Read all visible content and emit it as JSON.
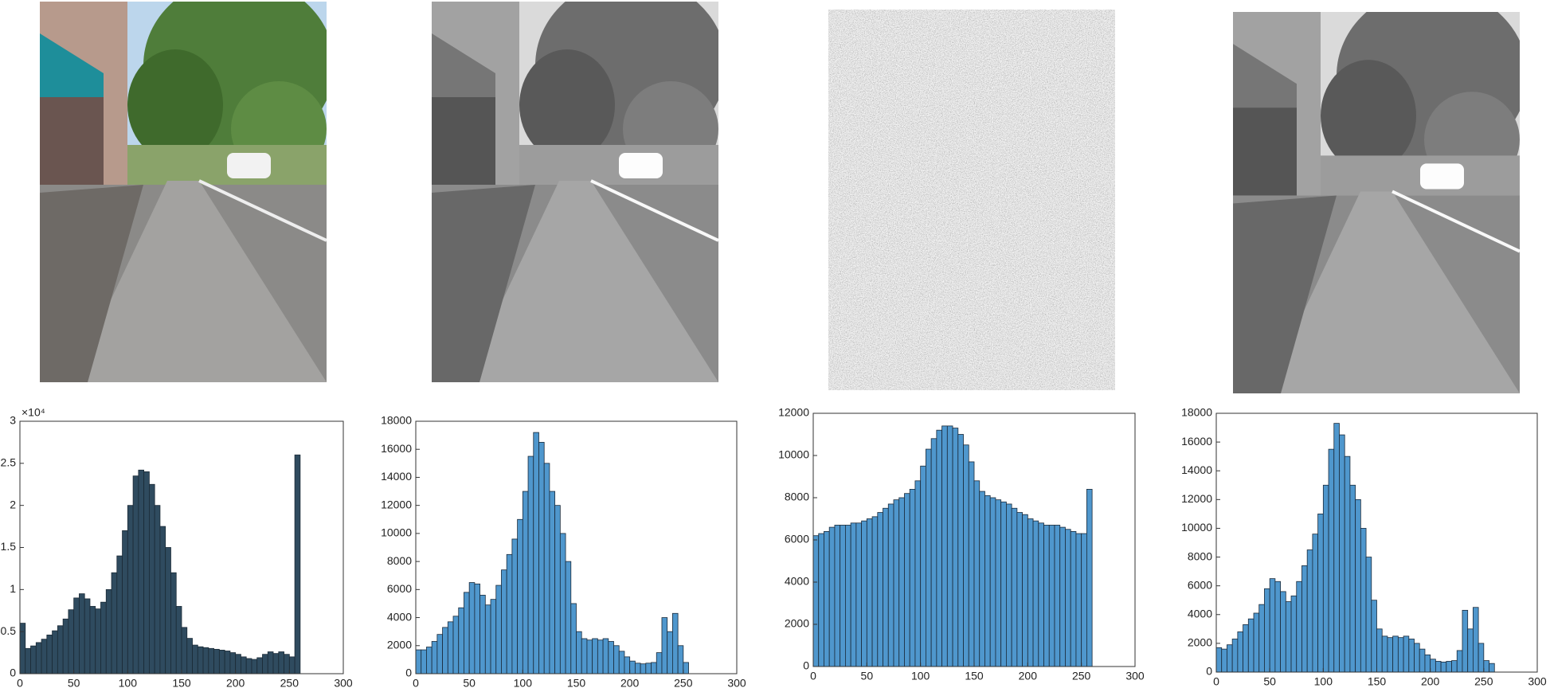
{
  "chart_data": [
    {
      "type": "histogram",
      "color": "#2f4b5f",
      "edge_color": "#1b2a36",
      "bins": [
        0,
        5,
        10,
        15,
        20,
        25,
        30,
        35,
        40,
        45,
        50,
        55,
        60,
        65,
        70,
        75,
        80,
        85,
        90,
        95,
        100,
        105,
        110,
        115,
        120,
        125,
        130,
        135,
        140,
        145,
        150,
        155,
        160,
        165,
        170,
        175,
        180,
        185,
        190,
        195,
        200,
        205,
        210,
        215,
        220,
        225,
        230,
        235,
        240,
        245,
        250,
        255,
        260
      ],
      "counts": [
        6000,
        3000,
        3300,
        3700,
        4100,
        4600,
        5100,
        5700,
        6500,
        7600,
        9000,
        9500,
        8900,
        8000,
        7700,
        8500,
        10000,
        12000,
        14000,
        17000,
        20000,
        23500,
        24200,
        24000,
        22500,
        20000,
        17500,
        15000,
        12000,
        8000,
        5500,
        4200,
        3400,
        3200,
        3100,
        3000,
        2900,
        2800,
        2700,
        2500,
        2300,
        2000,
        1800,
        1700,
        1900,
        2300,
        2600,
        2400,
        2600,
        2300,
        2000,
        26000
      ],
      "xlim": [
        0,
        300
      ],
      "xticks": [
        0,
        50,
        100,
        150,
        200,
        250,
        300
      ],
      "ylim": [
        0,
        30000
      ],
      "exponent_label": "×10⁴",
      "yticks": [
        0,
        {
          "value": 5000,
          "label": "0.5"
        },
        {
          "value": 10000,
          "label": "1"
        },
        {
          "value": 15000,
          "label": "1.5"
        },
        {
          "value": 20000,
          "label": "2"
        },
        {
          "value": 25000,
          "label": "2.5"
        },
        {
          "value": 30000,
          "label": "3"
        }
      ]
    },
    {
      "type": "histogram",
      "color": "#4f97cd",
      "edge_color": "#1a2a3a",
      "bins": [
        0,
        5,
        10,
        15,
        20,
        25,
        30,
        35,
        40,
        45,
        50,
        55,
        60,
        65,
        70,
        75,
        80,
        85,
        90,
        95,
        100,
        105,
        110,
        115,
        120,
        125,
        130,
        135,
        140,
        145,
        150,
        155,
        160,
        165,
        170,
        175,
        180,
        185,
        190,
        195,
        200,
        205,
        210,
        215,
        220,
        225,
        230,
        235,
        240,
        245,
        250,
        255,
        260
      ],
      "counts": [
        1700,
        1700,
        1900,
        2300,
        2800,
        3300,
        3700,
        4100,
        4700,
        5800,
        6500,
        6400,
        5600,
        4900,
        5300,
        6300,
        7400,
        8500,
        9600,
        11000,
        13000,
        15500,
        17200,
        16500,
        15000,
        13000,
        12000,
        10000,
        8000,
        5000,
        3000,
        2500,
        2400,
        2500,
        2400,
        2500,
        2300,
        2000,
        1600,
        1200,
        900,
        750,
        700,
        750,
        800,
        1500,
        4000,
        3000,
        4300,
        2000,
        800,
        0
      ],
      "xlim": [
        0,
        300
      ],
      "xticks": [
        0,
        50,
        100,
        150,
        200,
        250,
        300
      ],
      "ylim": [
        0,
        18000
      ],
      "yticks": [
        0,
        2000,
        4000,
        6000,
        8000,
        10000,
        12000,
        14000,
        16000,
        18000
      ]
    },
    {
      "type": "histogram",
      "color": "#4f97cd",
      "edge_color": "#1a2a3a",
      "bins": [
        0,
        5,
        10,
        15,
        20,
        25,
        30,
        35,
        40,
        45,
        50,
        55,
        60,
        65,
        70,
        75,
        80,
        85,
        90,
        95,
        100,
        105,
        110,
        115,
        120,
        125,
        130,
        135,
        140,
        145,
        150,
        155,
        160,
        165,
        170,
        175,
        180,
        185,
        190,
        195,
        200,
        205,
        210,
        215,
        220,
        225,
        230,
        235,
        240,
        245,
        250,
        255,
        260
      ],
      "counts": [
        6200,
        6300,
        6400,
        6600,
        6700,
        6700,
        6700,
        6800,
        6800,
        6900,
        7000,
        7100,
        7300,
        7500,
        7700,
        7900,
        8000,
        8200,
        8400,
        8800,
        9500,
        10300,
        10800,
        11200,
        11400,
        11400,
        11300,
        11000,
        10500,
        9700,
        8800,
        8300,
        8100,
        8000,
        7900,
        7800,
        7700,
        7500,
        7300,
        7200,
        7000,
        6900,
        6800,
        6700,
        6700,
        6700,
        6600,
        6500,
        6400,
        6300,
        6300,
        8400
      ],
      "xlim": [
        0,
        300
      ],
      "xticks": [
        0,
        50,
        100,
        150,
        200,
        250,
        300
      ],
      "ylim": [
        0,
        12000
      ],
      "yticks": [
        0,
        2000,
        4000,
        6000,
        8000,
        10000,
        12000
      ]
    },
    {
      "type": "histogram",
      "color": "#4f97cd",
      "edge_color": "#1a2a3a",
      "bins": [
        0,
        5,
        10,
        15,
        20,
        25,
        30,
        35,
        40,
        45,
        50,
        55,
        60,
        65,
        70,
        75,
        80,
        85,
        90,
        95,
        100,
        105,
        110,
        115,
        120,
        125,
        130,
        135,
        140,
        145,
        150,
        155,
        160,
        165,
        170,
        175,
        180,
        185,
        190,
        195,
        200,
        205,
        210,
        215,
        220,
        225,
        230,
        235,
        240,
        245,
        250,
        255,
        260
      ],
      "counts": [
        1700,
        1600,
        1900,
        2300,
        2800,
        3300,
        3700,
        4100,
        4700,
        5800,
        6500,
        6300,
        5600,
        4900,
        5300,
        6300,
        7400,
        8500,
        9600,
        11000,
        13000,
        15500,
        17300,
        16500,
        15000,
        13000,
        12000,
        10000,
        8000,
        5000,
        3000,
        2500,
        2400,
        2500,
        2400,
        2500,
        2300,
        2000,
        1600,
        1200,
        900,
        750,
        700,
        750,
        800,
        1500,
        4300,
        3000,
        4500,
        2000,
        800,
        600
      ],
      "xlim": [
        0,
        300
      ],
      "xticks": [
        0,
        50,
        100,
        150,
        200,
        250,
        300
      ],
      "ylim": [
        0,
        18000
      ],
      "yticks": [
        0,
        2000,
        4000,
        6000,
        8000,
        10000,
        12000,
        14000,
        16000,
        18000
      ]
    }
  ]
}
